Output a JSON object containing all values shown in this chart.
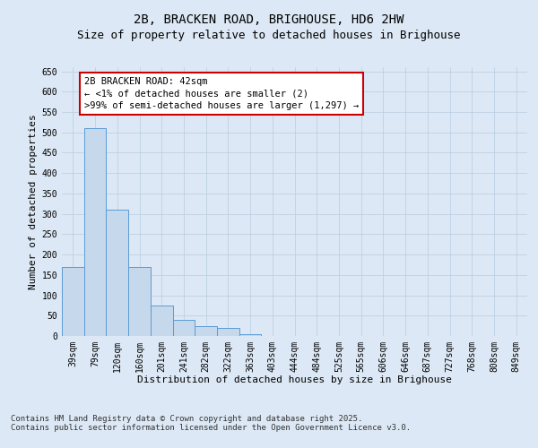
{
  "title_line1": "2B, BRACKEN ROAD, BRIGHOUSE, HD6 2HW",
  "title_line2": "Size of property relative to detached houses in Brighouse",
  "xlabel": "Distribution of detached houses by size in Brighouse",
  "ylabel": "Number of detached properties",
  "bar_labels": [
    "39sqm",
    "79sqm",
    "120sqm",
    "160sqm",
    "201sqm",
    "241sqm",
    "282sqm",
    "322sqm",
    "363sqm",
    "403sqm",
    "444sqm",
    "484sqm",
    "525sqm",
    "565sqm",
    "606sqm",
    "646sqm",
    "687sqm",
    "727sqm",
    "768sqm",
    "808sqm",
    "849sqm"
  ],
  "bar_values": [
    170,
    510,
    310,
    170,
    75,
    40,
    25,
    20,
    5,
    1,
    0,
    0,
    0,
    0,
    0,
    0,
    0,
    0,
    0,
    0,
    0
  ],
  "bar_color": "#c6d9ec",
  "bar_edge_color": "#5b9bd5",
  "background_color": "#dce8f5",
  "annotation_text": "2B BRACKEN ROAD: 42sqm\n← <1% of detached houses are smaller (2)\n>99% of semi-detached houses are larger (1,297) →",
  "annotation_box_color": "#ffffff",
  "annotation_box_edge_color": "#cc0000",
  "ylim": [
    0,
    660
  ],
  "yticks": [
    0,
    50,
    100,
    150,
    200,
    250,
    300,
    350,
    400,
    450,
    500,
    550,
    600,
    650
  ],
  "footer_text": "Contains HM Land Registry data © Crown copyright and database right 2025.\nContains public sector information licensed under the Open Government Licence v3.0.",
  "title_fontsize": 10,
  "subtitle_fontsize": 9,
  "axis_label_fontsize": 8,
  "tick_fontsize": 7,
  "annotation_fontsize": 7.5,
  "footer_fontsize": 6.5,
  "grid_color": "#b8cce0",
  "highlight_bar_index": 0
}
